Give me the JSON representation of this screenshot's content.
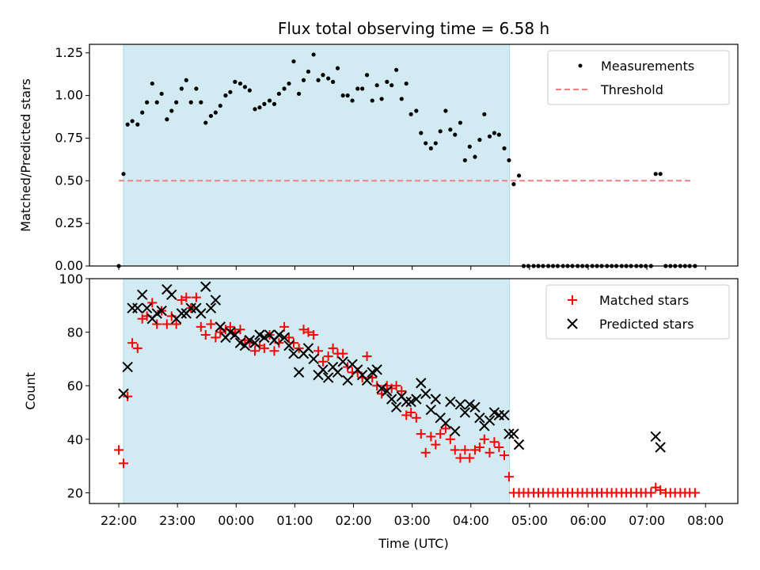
{
  "chart_data": [
    {
      "type": "scatter",
      "title": "Flux total observing time = 6.58 h",
      "xlabel": "",
      "ylabel": "Matched/Predicted stars",
      "xlim": [
        -0.5,
        10.55
      ],
      "ylim": [
        0.0,
        1.3
      ],
      "yticks": [
        0.0,
        0.25,
        0.5,
        0.75,
        1.0,
        1.25
      ],
      "ytick_labels": [
        "0.00",
        "0.25",
        "0.50",
        "0.75",
        "1.00",
        "1.25"
      ],
      "shaded_span": [
        0.08,
        6.66
      ],
      "shade_color": "#add8e6",
      "legend": [
        "Measurements",
        "Threshold"
      ],
      "threshold": {
        "name": "Threshold",
        "value": 0.5,
        "x_range": [
          0.0,
          9.8
        ],
        "color": "#f08080"
      },
      "series": [
        {
          "name": "Measurements",
          "color": "#000000",
          "x": [
            0.0,
            0.08,
            0.15,
            0.23,
            0.32,
            0.4,
            0.48,
            0.57,
            0.65,
            0.73,
            0.82,
            0.9,
            0.98,
            1.07,
            1.15,
            1.23,
            1.32,
            1.4,
            1.48,
            1.57,
            1.65,
            1.73,
            1.82,
            1.9,
            1.98,
            2.07,
            2.15,
            2.23,
            2.32,
            2.4,
            2.48,
            2.57,
            2.65,
            2.73,
            2.82,
            2.9,
            2.98,
            3.07,
            3.15,
            3.23,
            3.32,
            3.4,
            3.48,
            3.57,
            3.65,
            3.73,
            3.82,
            3.9,
            3.98,
            4.07,
            4.15,
            4.23,
            4.32,
            4.4,
            4.48,
            4.57,
            4.65,
            4.73,
            4.82,
            4.9,
            4.98,
            5.07,
            5.15,
            5.23,
            5.32,
            5.4,
            5.48,
            5.57,
            5.65,
            5.73,
            5.82,
            5.9,
            5.98,
            6.07,
            6.15,
            6.23,
            6.32,
            6.4,
            6.48,
            6.57,
            6.65,
            6.73,
            6.82,
            6.9,
            6.98,
            7.07,
            7.15,
            7.23,
            7.32,
            7.4,
            7.48,
            7.57,
            7.65,
            7.73,
            7.82,
            7.9,
            7.98,
            8.07,
            8.15,
            8.23,
            8.32,
            8.4,
            8.48,
            8.57,
            8.65,
            8.73,
            8.82,
            8.9,
            8.98,
            9.07,
            9.15,
            9.23,
            9.32,
            9.4,
            9.48,
            9.57,
            9.65,
            9.73,
            9.82
          ],
          "y": [
            0.0,
            0.54,
            0.83,
            0.85,
            0.83,
            0.9,
            0.96,
            1.07,
            0.96,
            1.01,
            0.86,
            0.91,
            0.96,
            1.04,
            1.09,
            0.96,
            1.04,
            0.96,
            0.84,
            0.88,
            0.9,
            0.94,
            1.0,
            1.02,
            1.08,
            1.07,
            1.05,
            1.03,
            0.92,
            0.93,
            0.95,
            0.97,
            0.95,
            1.01,
            1.04,
            1.07,
            1.2,
            1.01,
            1.09,
            1.14,
            1.24,
            1.09,
            1.12,
            1.1,
            1.08,
            1.16,
            1.0,
            1.0,
            0.97,
            1.04,
            1.04,
            1.12,
            0.97,
            1.06,
            0.98,
            1.08,
            1.06,
            1.15,
            0.98,
            1.07,
            0.89,
            0.91,
            0.78,
            0.72,
            0.69,
            0.72,
            0.79,
            0.91,
            0.8,
            0.77,
            0.84,
            0.62,
            0.7,
            0.64,
            0.74,
            0.89,
            0.76,
            0.78,
            0.77,
            0.69,
            0.62,
            0.48,
            0.53,
            0.0,
            0.0,
            0.0,
            0.0,
            0.0,
            0.0,
            0.0,
            0.0,
            0.0,
            0.0,
            0.0,
            0.0,
            0.0,
            0.0,
            0.0,
            0.0,
            0.0,
            0.0,
            0.0,
            0.0,
            0.0,
            0.0,
            0.0,
            0.0,
            0.0,
            0.0,
            0.0,
            0.54,
            0.54,
            0.0,
            0.0,
            0.0,
            0.0,
            0.0,
            0.0,
            0.0
          ]
        }
      ]
    },
    {
      "type": "scatter",
      "title": "",
      "xlabel": "Time (UTC)",
      "ylabel": "Count",
      "xlim": [
        -0.5,
        10.55
      ],
      "ylim": [
        16,
        100
      ],
      "yticks": [
        20,
        40,
        60,
        80,
        100
      ],
      "ytick_labels": [
        "20",
        "40",
        "60",
        "80",
        "100"
      ],
      "xticks": [
        0,
        1,
        2,
        3,
        4,
        5,
        6,
        7,
        8,
        9,
        10
      ],
      "xtick_labels": [
        "22:00",
        "23:00",
        "00:00",
        "01:00",
        "02:00",
        "03:00",
        "04:00",
        "05:00",
        "06:00",
        "07:00",
        "08:00"
      ],
      "shaded_span": [
        0.08,
        6.66
      ],
      "shade_color": "#add8e6",
      "legend": [
        "Matched stars",
        "Predicted stars"
      ],
      "series": [
        {
          "name": "Matched stars",
          "marker": "+",
          "color": "#ff0000",
          "x": [
            0.0,
            0.08,
            0.15,
            0.23,
            0.32,
            0.4,
            0.48,
            0.57,
            0.65,
            0.73,
            0.82,
            0.9,
            0.98,
            1.07,
            1.15,
            1.23,
            1.32,
            1.4,
            1.48,
            1.57,
            1.65,
            1.73,
            1.82,
            1.9,
            1.98,
            2.07,
            2.15,
            2.23,
            2.32,
            2.4,
            2.48,
            2.57,
            2.65,
            2.73,
            2.82,
            2.9,
            2.98,
            3.07,
            3.15,
            3.23,
            3.32,
            3.4,
            3.48,
            3.57,
            3.65,
            3.73,
            3.82,
            3.9,
            3.98,
            4.07,
            4.15,
            4.23,
            4.32,
            4.4,
            4.48,
            4.57,
            4.65,
            4.73,
            4.82,
            4.9,
            4.98,
            5.07,
            5.15,
            5.23,
            5.32,
            5.4,
            5.48,
            5.57,
            5.65,
            5.73,
            5.82,
            5.9,
            5.98,
            6.07,
            6.15,
            6.23,
            6.32,
            6.4,
            6.48,
            6.57,
            6.65,
            6.73,
            6.82,
            6.9,
            6.98,
            7.07,
            7.15,
            7.23,
            7.32,
            7.4,
            7.48,
            7.57,
            7.65,
            7.73,
            7.82,
            7.9,
            7.98,
            8.07,
            8.15,
            8.23,
            8.32,
            8.4,
            8.48,
            8.57,
            8.65,
            8.73,
            8.82,
            8.9,
            8.98,
            9.07,
            9.15,
            9.23,
            9.32,
            9.4,
            9.48,
            9.57,
            9.65,
            9.73,
            9.82
          ],
          "y": [
            36,
            31,
            56,
            76,
            74,
            85,
            86,
            91,
            83,
            88,
            83,
            86,
            83,
            92,
            93,
            89,
            93,
            82,
            79,
            83,
            78,
            80,
            81,
            82,
            80,
            81,
            77,
            76,
            73,
            75,
            74,
            79,
            73,
            76,
            82,
            78,
            76,
            74,
            81,
            80,
            79,
            73,
            69,
            71,
            74,
            72,
            72,
            67,
            65,
            65,
            63,
            71,
            63,
            60,
            57,
            60,
            59,
            60,
            58,
            49,
            50,
            48,
            42,
            35,
            41,
            38,
            42,
            44,
            40,
            36,
            33,
            36,
            33,
            36,
            37,
            40,
            35,
            39,
            37,
            34,
            26,
            20,
            20,
            20,
            20,
            20,
            20,
            20,
            20,
            20,
            20,
            20,
            20,
            20,
            20,
            20,
            20,
            20,
            20,
            20,
            20,
            20,
            20,
            20,
            20,
            20,
            20,
            20,
            20,
            20,
            22,
            21,
            20,
            20,
            20,
            20,
            20,
            20,
            20
          ]
        },
        {
          "name": "Predicted stars",
          "marker": "x",
          "color": "#000000",
          "x": [
            0.08,
            0.15,
            0.23,
            0.32,
            0.4,
            0.48,
            0.57,
            0.65,
            0.73,
            0.82,
            0.9,
            0.98,
            1.07,
            1.15,
            1.23,
            1.32,
            1.4,
            1.48,
            1.57,
            1.65,
            1.73,
            1.82,
            1.9,
            1.98,
            2.07,
            2.15,
            2.23,
            2.32,
            2.4,
            2.48,
            2.57,
            2.65,
            2.73,
            2.82,
            2.9,
            2.98,
            3.07,
            3.15,
            3.23,
            3.32,
            3.4,
            3.48,
            3.57,
            3.65,
            3.73,
            3.82,
            3.9,
            3.98,
            4.07,
            4.15,
            4.23,
            4.32,
            4.4,
            4.48,
            4.57,
            4.65,
            4.73,
            4.82,
            4.9,
            4.98,
            5.07,
            5.15,
            5.23,
            5.32,
            5.4,
            5.48,
            5.57,
            5.65,
            5.73,
            5.82,
            5.9,
            5.98,
            6.07,
            6.15,
            6.23,
            6.32,
            6.4,
            6.48,
            6.57,
            6.65,
            6.73,
            6.82,
            9.15,
            9.23
          ],
          "y": [
            57,
            67,
            89,
            89,
            94,
            89,
            85,
            87,
            88,
            96,
            94,
            85,
            87,
            87,
            89,
            89,
            87,
            97,
            89,
            92,
            82,
            78,
            80,
            79,
            76,
            75,
            77,
            76,
            79,
            78,
            79,
            77,
            79,
            78,
            75,
            72,
            65,
            72,
            74,
            70,
            64,
            66,
            63,
            67,
            65,
            69,
            62,
            68,
            66,
            64,
            62,
            65,
            66,
            59,
            58,
            55,
            52,
            56,
            54,
            54,
            55,
            61,
            57,
            51,
            55,
            48,
            46,
            54,
            43,
            53,
            50,
            53,
            52,
            48,
            45,
            47,
            50,
            49,
            49,
            42,
            42,
            38,
            41,
            37
          ]
        }
      ]
    }
  ]
}
